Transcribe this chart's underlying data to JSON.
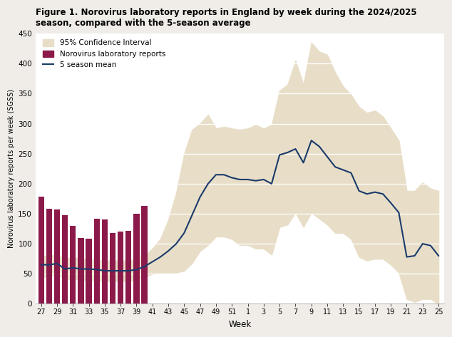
{
  "title_line1": "Figure 1. Norovirus laboratory reports in England by week during the 2024/2025",
  "title_line2": "season, compared with the 5-season average",
  "xlabel": "Week",
  "ylabel": "Norovirus laboratory reports per week (SGSS)",
  "ylim": [
    0,
    450
  ],
  "yticks": [
    0,
    50,
    100,
    150,
    200,
    250,
    300,
    350,
    400,
    450
  ],
  "bar_weeks": [
    27,
    28,
    29,
    30,
    31,
    32,
    33,
    34,
    35,
    36,
    37,
    38,
    39,
    40
  ],
  "bar_values": [
    178,
    158,
    157,
    148,
    130,
    110,
    108,
    142,
    140,
    118,
    120,
    122,
    150,
    163
  ],
  "bar_color": "#8B1A4A",
  "line_weeks_idx": [
    0,
    1,
    2,
    3,
    4,
    5,
    6,
    7,
    8,
    9,
    10,
    11,
    12,
    13,
    14,
    15,
    16,
    17,
    18,
    19,
    20,
    21,
    22,
    23,
    24,
    25,
    26,
    27,
    28,
    29,
    30,
    31,
    32,
    33,
    34,
    35,
    36,
    37,
    38,
    39,
    40,
    41,
    42,
    43,
    44,
    45,
    46,
    47,
    48,
    49,
    50
  ],
  "line_values": [
    65,
    65,
    67,
    58,
    60,
    58,
    58,
    57,
    55,
    55,
    55,
    55,
    57,
    62,
    70,
    78,
    88,
    100,
    118,
    148,
    178,
    200,
    215,
    215,
    210,
    207,
    207,
    205,
    207,
    200,
    248,
    252,
    258,
    235,
    272,
    262,
    245,
    228,
    223,
    218,
    188,
    183,
    186,
    183,
    168,
    152,
    78,
    80,
    100,
    97,
    80
  ],
  "ci_upper": [
    80,
    80,
    82,
    75,
    78,
    75,
    75,
    74,
    72,
    72,
    72,
    72,
    75,
    80,
    92,
    108,
    140,
    185,
    250,
    290,
    300,
    315,
    292,
    295,
    292,
    290,
    292,
    298,
    292,
    298,
    355,
    365,
    405,
    365,
    435,
    420,
    415,
    385,
    362,
    348,
    328,
    318,
    322,
    312,
    292,
    272,
    188,
    188,
    202,
    192,
    188
  ],
  "ci_lower": [
    45,
    45,
    50,
    40,
    42,
    40,
    40,
    38,
    38,
    38,
    38,
    38,
    40,
    45,
    50,
    52,
    52,
    52,
    55,
    68,
    88,
    98,
    112,
    112,
    108,
    98,
    98,
    92,
    92,
    82,
    128,
    132,
    152,
    128,
    152,
    142,
    132,
    118,
    118,
    108,
    78,
    72,
    75,
    75,
    65,
    52,
    8,
    3,
    8,
    8,
    0
  ],
  "ci_color": "#E8DEC8",
  "line_color": "#1a3a6b",
  "bg_color": "#ffffff",
  "outer_color": "#f0ede8",
  "xtick_labels": [
    "27",
    "29",
    "31",
    "33",
    "35",
    "37",
    "39",
    "41",
    "43",
    "45",
    "47",
    "49",
    "51",
    "1",
    "3",
    "5",
    "7",
    "9",
    "11",
    "13",
    "15",
    "17",
    "19",
    "21",
    "23",
    "25"
  ],
  "xtick_positions": [
    0,
    2,
    4,
    6,
    8,
    10,
    12,
    14,
    16,
    18,
    20,
    22,
    24,
    26,
    28,
    30,
    32,
    34,
    36,
    38,
    40,
    42,
    44,
    46,
    48,
    50
  ],
  "legend_ci": "95% Confidence Interval",
  "legend_bar": "Norovirus laboratory reports",
  "legend_line": "5 season mean"
}
